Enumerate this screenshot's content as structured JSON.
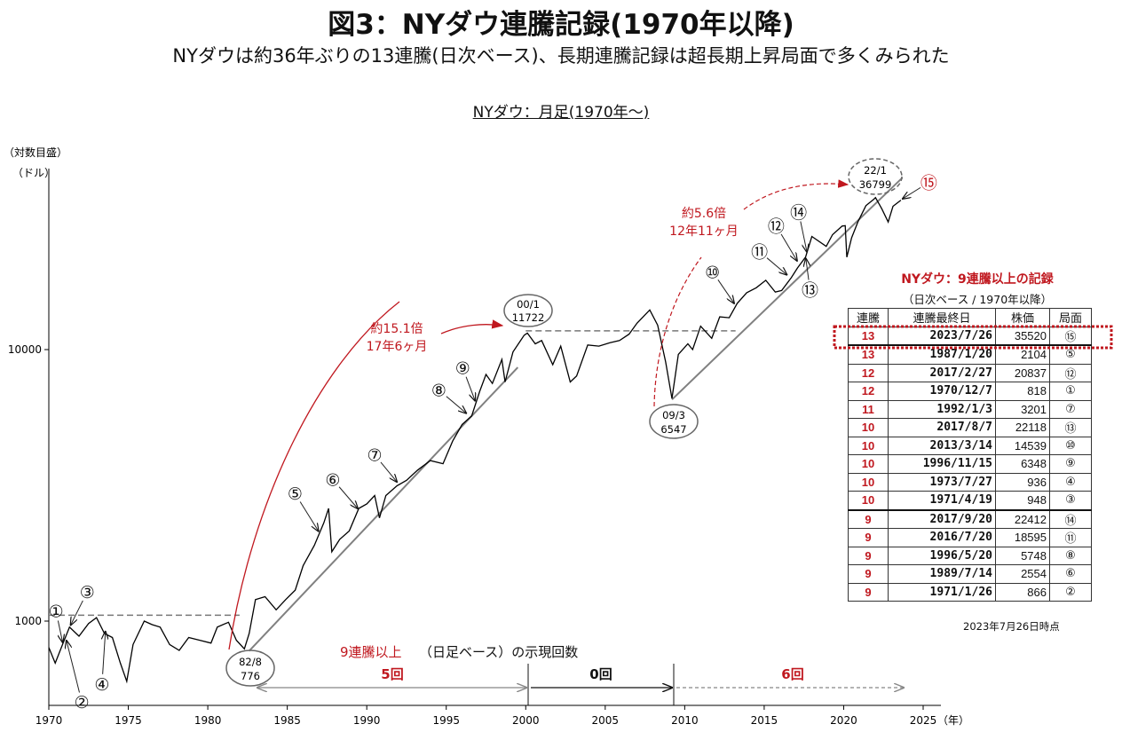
{
  "title": "図3：NYダウ連騰記録(1970年以降)",
  "subtitle": "NYダウは約36年ぶりの13連騰(日次ベース)、長期連騰記録は超長期上昇局面で多くみられた",
  "chart_title": "NYダウ：月足(1970年～)",
  "chart_data": {
    "type": "line",
    "title": "NYダウ：月足(1970年～)",
    "y_unit_label_1": "（対数目盛）",
    "y_unit_label_2": "（ドル）",
    "x_unit_label": "（年）",
    "yscale": "log",
    "ylim": [
      500,
      52000
    ],
    "xlim": [
      1970,
      2026
    ],
    "x_ticks": [
      "1970",
      "1975",
      "1980",
      "1985",
      "1990",
      "1995",
      "2000",
      "2005",
      "2010",
      "2015",
      "2020",
      "2025"
    ],
    "y_ticks": [
      "1000",
      "10000"
    ],
    "series": [
      {
        "x": [
          1970.0,
          1970.4,
          1970.9,
          1971.3,
          1971.9,
          1972.5,
          1973.0,
          1973.5,
          1974.0,
          1974.5,
          1974.9,
          1975.3,
          1976.0,
          1976.5,
          1977.0,
          1977.6,
          1978.2,
          1978.8,
          1979.5,
          1980.2,
          1980.6,
          1981.3,
          1981.8,
          1982.3,
          1982.6,
          1983.0,
          1983.6,
          1984.3,
          1984.9,
          1985.5,
          1986.0,
          1986.7,
          1987.3,
          1987.6,
          1987.8,
          1988.3,
          1988.9,
          1989.5,
          1990.0,
          1990.5,
          1990.8,
          1991.2,
          1991.9,
          1992.5,
          1993.2,
          1994.0,
          1994.8,
          1995.4,
          1996.0,
          1996.6,
          1997.1,
          1997.5,
          1997.9,
          1998.5,
          1998.7,
          1999.2,
          1999.9,
          2000.1,
          2000.6,
          2001.0,
          2001.7,
          2002.2,
          2002.8,
          2003.2,
          2003.9,
          2004.6,
          2005.3,
          2005.9,
          2006.5,
          2007.0,
          2007.8,
          2008.3,
          2008.8,
          2009.2,
          2009.6,
          2010.2,
          2010.5,
          2011.0,
          2011.7,
          2012.2,
          2012.8,
          2013.3,
          2013.9,
          2014.5,
          2015.1,
          2015.7,
          2016.1,
          2016.7,
          2017.1,
          2017.6,
          2018.0,
          2018.9,
          2019.3,
          2019.9,
          2020.1,
          2020.2,
          2020.5,
          2020.9,
          2021.4,
          2021.9,
          2022.0,
          2022.4,
          2022.8,
          2023.1,
          2023.6
        ],
        "y": [
          800,
          700,
          830,
          950,
          880,
          980,
          1030,
          900,
          870,
          700,
          600,
          820,
          1000,
          970,
          950,
          820,
          780,
          870,
          850,
          830,
          950,
          990,
          850,
          790,
          900,
          1200,
          1230,
          1100,
          1200,
          1300,
          1600,
          1900,
          2300,
          2600,
          1800,
          2000,
          2150,
          2600,
          2700,
          2900,
          2400,
          2900,
          3150,
          3300,
          3600,
          3900,
          3800,
          4600,
          5300,
          5700,
          7000,
          8100,
          7500,
          9200,
          7600,
          9800,
          11300,
          11500,
          10500,
          10800,
          8800,
          10300,
          7600,
          8000,
          10400,
          10300,
          10600,
          10800,
          11400,
          12500,
          14000,
          12300,
          9000,
          6600,
          9600,
          10500,
          10000,
          12200,
          11000,
          13200,
          13100,
          14800,
          16200,
          16900,
          18000,
          16300,
          16500,
          18400,
          20000,
          21900,
          26100,
          24000,
          26500,
          28500,
          28600,
          21900,
          25800,
          29600,
          33900,
          35800,
          36300,
          33000,
          29500,
          33700,
          35520
        ],
        "color": "#000000"
      }
    ],
    "trend_lines": [
      {
        "x": [
          1982.6,
          1999.5
        ],
        "y": [
          776,
          8600
        ]
      },
      {
        "x": [
          2009.2,
          2023.7
        ],
        "y": [
          6547,
          43000
        ]
      }
    ],
    "reference_lines": [
      {
        "y": 1051,
        "x": [
          1970.0,
          1982.0
        ]
      },
      {
        "y": 11722,
        "x": [
          2000.0,
          2013.2
        ]
      }
    ],
    "annotations": {
      "peak_2000": {
        "label_1": "00/1",
        "label_2": "11722"
      },
      "peak_2022": {
        "label_1": "22/1",
        "label_2": "36799"
      },
      "trough_1982": {
        "label_1": "82/8",
        "label_2": "776"
      },
      "trough_2009": {
        "label_1": "09/3",
        "label_2": "6547"
      },
      "rise_1": {
        "label_1": "約15.1倍",
        "label_2": "17年6ヶ月"
      },
      "rise_2": {
        "label_1": "約5.6倍",
        "label_2": "12年11ヶ月"
      },
      "count_caption_1": "9連騰以上",
      "count_caption_2": "（日足ベース）の示現回数",
      "count_1": "5回",
      "count_2": "0回",
      "count_3": "6回"
    },
    "markers": [
      {
        "label": "①",
        "x": 1970.9,
        "y": 818
      },
      {
        "label": "②",
        "x": 1971.07,
        "y": 866
      },
      {
        "label": "③",
        "x": 1971.3,
        "y": 948
      },
      {
        "label": "④",
        "x": 1973.57,
        "y": 936
      },
      {
        "label": "⑤",
        "x": 1987.05,
        "y": 2104
      },
      {
        "label": "⑥",
        "x": 1989.54,
        "y": 2554
      },
      {
        "label": "⑦",
        "x": 1992.0,
        "y": 3201
      },
      {
        "label": "⑧",
        "x": 1996.38,
        "y": 5748
      },
      {
        "label": "⑨",
        "x": 1996.87,
        "y": 6348
      },
      {
        "label": "⑩",
        "x": 2013.2,
        "y": 14539
      },
      {
        "label": "⑪",
        "x": 2016.55,
        "y": 18595
      },
      {
        "label": "⑫",
        "x": 2017.15,
        "y": 20837
      },
      {
        "label": "⑬",
        "x": 2017.6,
        "y": 22118
      },
      {
        "label": "⑭",
        "x": 2017.72,
        "y": 22412
      },
      {
        "label": "⑮",
        "x": 2023.57,
        "y": 35520
      }
    ]
  },
  "table": {
    "title": "NYダウ：9連騰以上の記録",
    "subtitle": "（日次ベース / 1970年以降）",
    "headers": [
      "連騰",
      "連騰最終日",
      "株価",
      "局面"
    ],
    "rows": [
      {
        "n": "13",
        "date": "2023/7/26",
        "price": "35520",
        "phase": "⑮"
      },
      {
        "n": "13",
        "date": "1987/1/20",
        "price": "2104",
        "phase": "⑤"
      },
      {
        "n": "12",
        "date": "2017/2/27",
        "price": "20837",
        "phase": "⑫"
      },
      {
        "n": "12",
        "date": "1970/12/7",
        "price": "818",
        "phase": "①"
      },
      {
        "n": "11",
        "date": "1992/1/3",
        "price": "3201",
        "phase": "⑦"
      },
      {
        "n": "10",
        "date": "2017/8/7",
        "price": "22118",
        "phase": "⑬"
      },
      {
        "n": "10",
        "date": "2013/3/14",
        "price": "14539",
        "phase": "⑩"
      },
      {
        "n": "10",
        "date": "1996/11/15",
        "price": "6348",
        "phase": "⑨"
      },
      {
        "n": "10",
        "date": "1973/7/27",
        "price": "936",
        "phase": "④"
      },
      {
        "n": "10",
        "date": "1971/4/19",
        "price": "948",
        "phase": "③"
      },
      {
        "n": "9",
        "date": "2017/9/20",
        "price": "22412",
        "phase": "⑭"
      },
      {
        "n": "9",
        "date": "2016/7/20",
        "price": "18595",
        "phase": "⑪"
      },
      {
        "n": "9",
        "date": "1996/5/20",
        "price": "5748",
        "phase": "⑧"
      },
      {
        "n": "9",
        "date": "1989/7/14",
        "price": "2554",
        "phase": "⑥"
      },
      {
        "n": "9",
        "date": "1971/1/26",
        "price": "866",
        "phase": "②"
      }
    ],
    "as_of": "2023年7月26日時点"
  },
  "colors": {
    "accent_red": "#c0181f",
    "line": "#000000",
    "trend": "#808080"
  }
}
